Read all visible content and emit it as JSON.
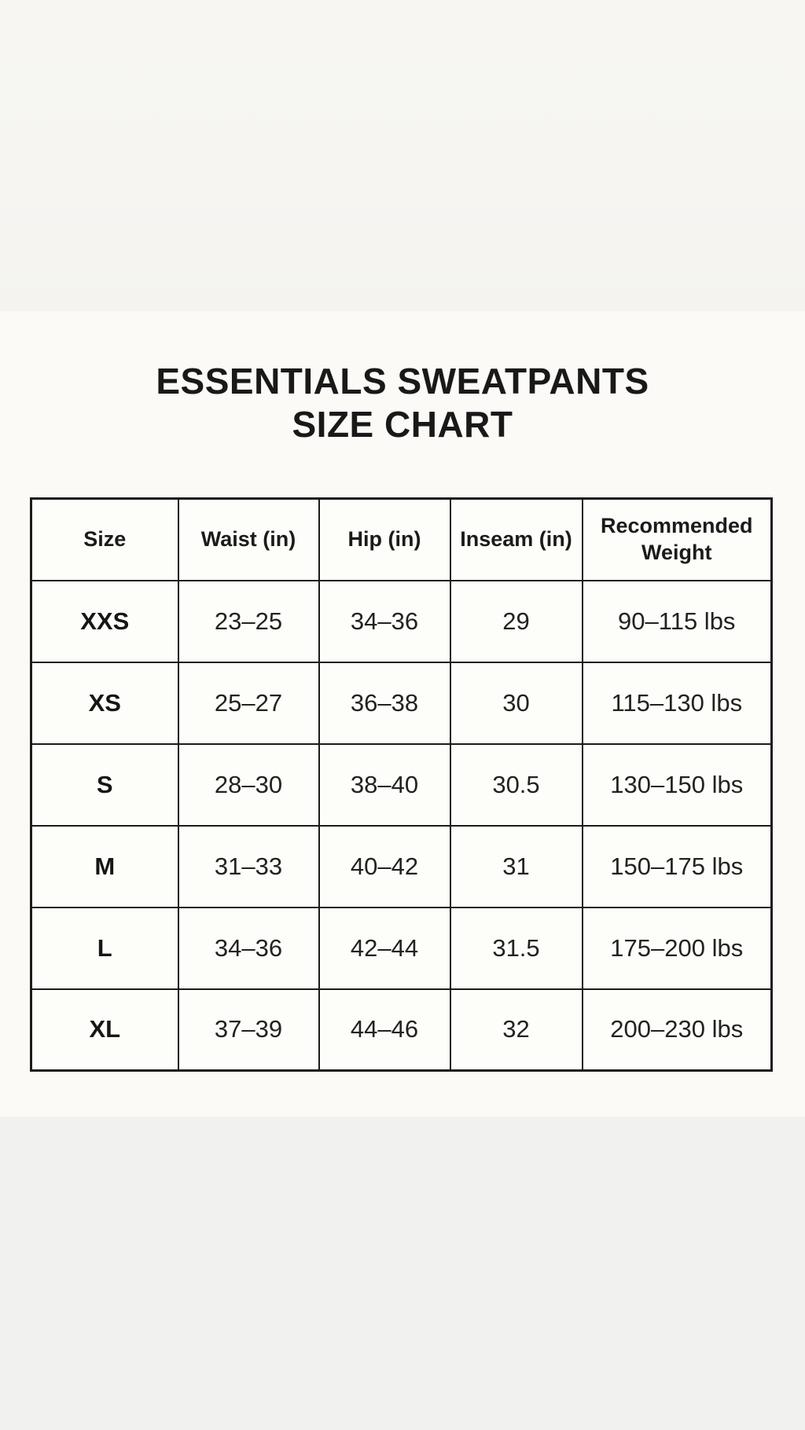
{
  "title": {
    "line1": "ESSENTIALS SWEATPANTS",
    "line2": "SIZE CHART"
  },
  "table": {
    "headers": [
      "Size",
      "Waist (in)",
      "Hip (in)",
      "Inseam (in)",
      "Recommended Weight"
    ],
    "rows": [
      [
        "XXS",
        "23–25",
        "34–36",
        "29",
        "90–115 lbs"
      ],
      [
        "XS",
        "25–27",
        "36–38",
        "30",
        "115–130 lbs"
      ],
      [
        "S",
        "28–30",
        "38–40",
        "30.5",
        "130–150 lbs"
      ],
      [
        "M",
        "31–33",
        "40–42",
        "31",
        "150–175 lbs"
      ],
      [
        "L",
        "34–36",
        "42–44",
        "31.5",
        "175–200 lbs"
      ],
      [
        "XL",
        "37–39",
        "44–46",
        "32",
        "200–230 lbs"
      ]
    ]
  },
  "colors": {
    "text": "#1b1b1b",
    "table_border": "#1c1c1c",
    "cell_background": "#fdfdf9",
    "page_background_middle": "#fbfaf6",
    "page_background_top": "#f6f5f2",
    "page_background_bottom": "#f1f1ef"
  }
}
